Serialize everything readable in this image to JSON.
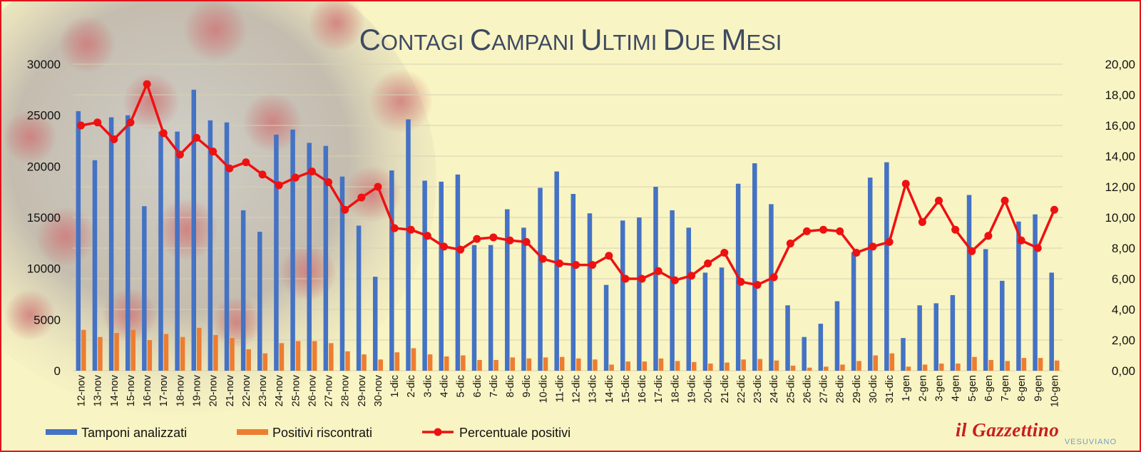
{
  "chart_data": {
    "type": "bar+line",
    "title": "Contagi Campani ultimi due mesi",
    "categories": [
      "12-nov",
      "13-nov",
      "14-nov",
      "15-nov",
      "16-nov",
      "17-nov",
      "18-nov",
      "19-nov",
      "20-nov",
      "21-nov",
      "22-nov",
      "23-nov",
      "24-nov",
      "25-nov",
      "26-nov",
      "27-nov",
      "28-nov",
      "29-nov",
      "30-nov",
      "1-dic",
      "2-dic",
      "3-dic",
      "4-dic",
      "5-dic",
      "6-dic",
      "7-dic",
      "8-dic",
      "9-dic",
      "10-dic",
      "11-dic",
      "12-dic",
      "13-dic",
      "14-dic",
      "15-dic",
      "16-dic",
      "17-dic",
      "18-dic",
      "19-dic",
      "20-dic",
      "21-dic",
      "22-dic",
      "23-dic",
      "24-dic",
      "25-dic",
      "26-dic",
      "27-dic",
      "28-dic",
      "29-dic",
      "30-dic",
      "31-dic",
      "1-gen",
      "2-gen",
      "3-gen",
      "4-gen",
      "5-gen",
      "6-gen",
      "7-gen",
      "8-gen",
      "9-gen",
      "10-gen"
    ],
    "series": [
      {
        "name": "Tamponi analizzati",
        "type": "bar",
        "axis": "left",
        "color": "#4472c4",
        "values": [
          25400,
          20600,
          24800,
          25000,
          16100,
          23400,
          23400,
          27500,
          24500,
          24300,
          15700,
          13600,
          23100,
          23600,
          22300,
          22000,
          19000,
          14200,
          9200,
          19600,
          24600,
          18600,
          18500,
          19200,
          12300,
          12300,
          15800,
          14000,
          17900,
          19500,
          17300,
          15400,
          8400,
          14700,
          15000,
          18000,
          15700,
          14000,
          9600,
          10100,
          18300,
          20300,
          16300,
          6400,
          3300,
          4600,
          6800,
          11600,
          18900,
          20400,
          3200,
          6400,
          6600,
          7400,
          17200,
          11900,
          8800,
          14600,
          15300,
          9600
        ]
      },
      {
        "name": "Positivi riscontrati",
        "type": "bar",
        "axis": "left",
        "color": "#ed7d31",
        "values": [
          4000,
          3300,
          3700,
          4000,
          3000,
          3600,
          3300,
          4200,
          3500,
          3200,
          2100,
          1700,
          2700,
          2900,
          2900,
          2700,
          1900,
          1600,
          1100,
          1800,
          2200,
          1600,
          1400,
          1500,
          1050,
          1050,
          1300,
          1200,
          1300,
          1350,
          1200,
          1100,
          600,
          900,
          900,
          1200,
          950,
          850,
          700,
          800,
          1100,
          1150,
          1000,
          500,
          300,
          400,
          600,
          950,
          1500,
          1700,
          400,
          600,
          700,
          700,
          1350,
          1050,
          950,
          1250,
          1250,
          1000
        ]
      },
      {
        "name": "Percentuale positivi",
        "type": "line",
        "axis": "right",
        "color": "#ee1111",
        "values": [
          16.0,
          16.2,
          15.1,
          16.2,
          18.7,
          15.5,
          14.1,
          15.2,
          14.3,
          13.2,
          13.6,
          12.8,
          12.1,
          12.6,
          13.0,
          12.3,
          10.5,
          11.3,
          12.0,
          9.3,
          9.2,
          8.8,
          8.1,
          7.9,
          8.6,
          8.7,
          8.5,
          8.4,
          7.3,
          7.0,
          6.9,
          6.9,
          7.5,
          6.0,
          6.0,
          6.5,
          5.9,
          6.2,
          7.0,
          7.7,
          5.8,
          5.6,
          6.1,
          8.3,
          9.1,
          9.2,
          9.1,
          7.7,
          8.1,
          8.4,
          12.2,
          9.7,
          11.1,
          9.2,
          7.8,
          8.8,
          11.1,
          8.5,
          8.0,
          10.5
        ]
      }
    ],
    "y_left": {
      "min": 0,
      "max": 30000,
      "ticks": [
        "0",
        "5000",
        "10000",
        "15000",
        "20000",
        "25000",
        "30000"
      ]
    },
    "y_right": {
      "min": 0,
      "max": 20,
      "ticks": [
        "0,00",
        "2,00",
        "4,00",
        "6,00",
        "8,00",
        "10,00",
        "12,00",
        "14,00",
        "16,00",
        "18,00",
        "20,00"
      ]
    },
    "grid": true,
    "legend_position": "bottom-left"
  },
  "watermark": {
    "logo": "il Gazzettino",
    "sub": "VESUVIANO"
  }
}
